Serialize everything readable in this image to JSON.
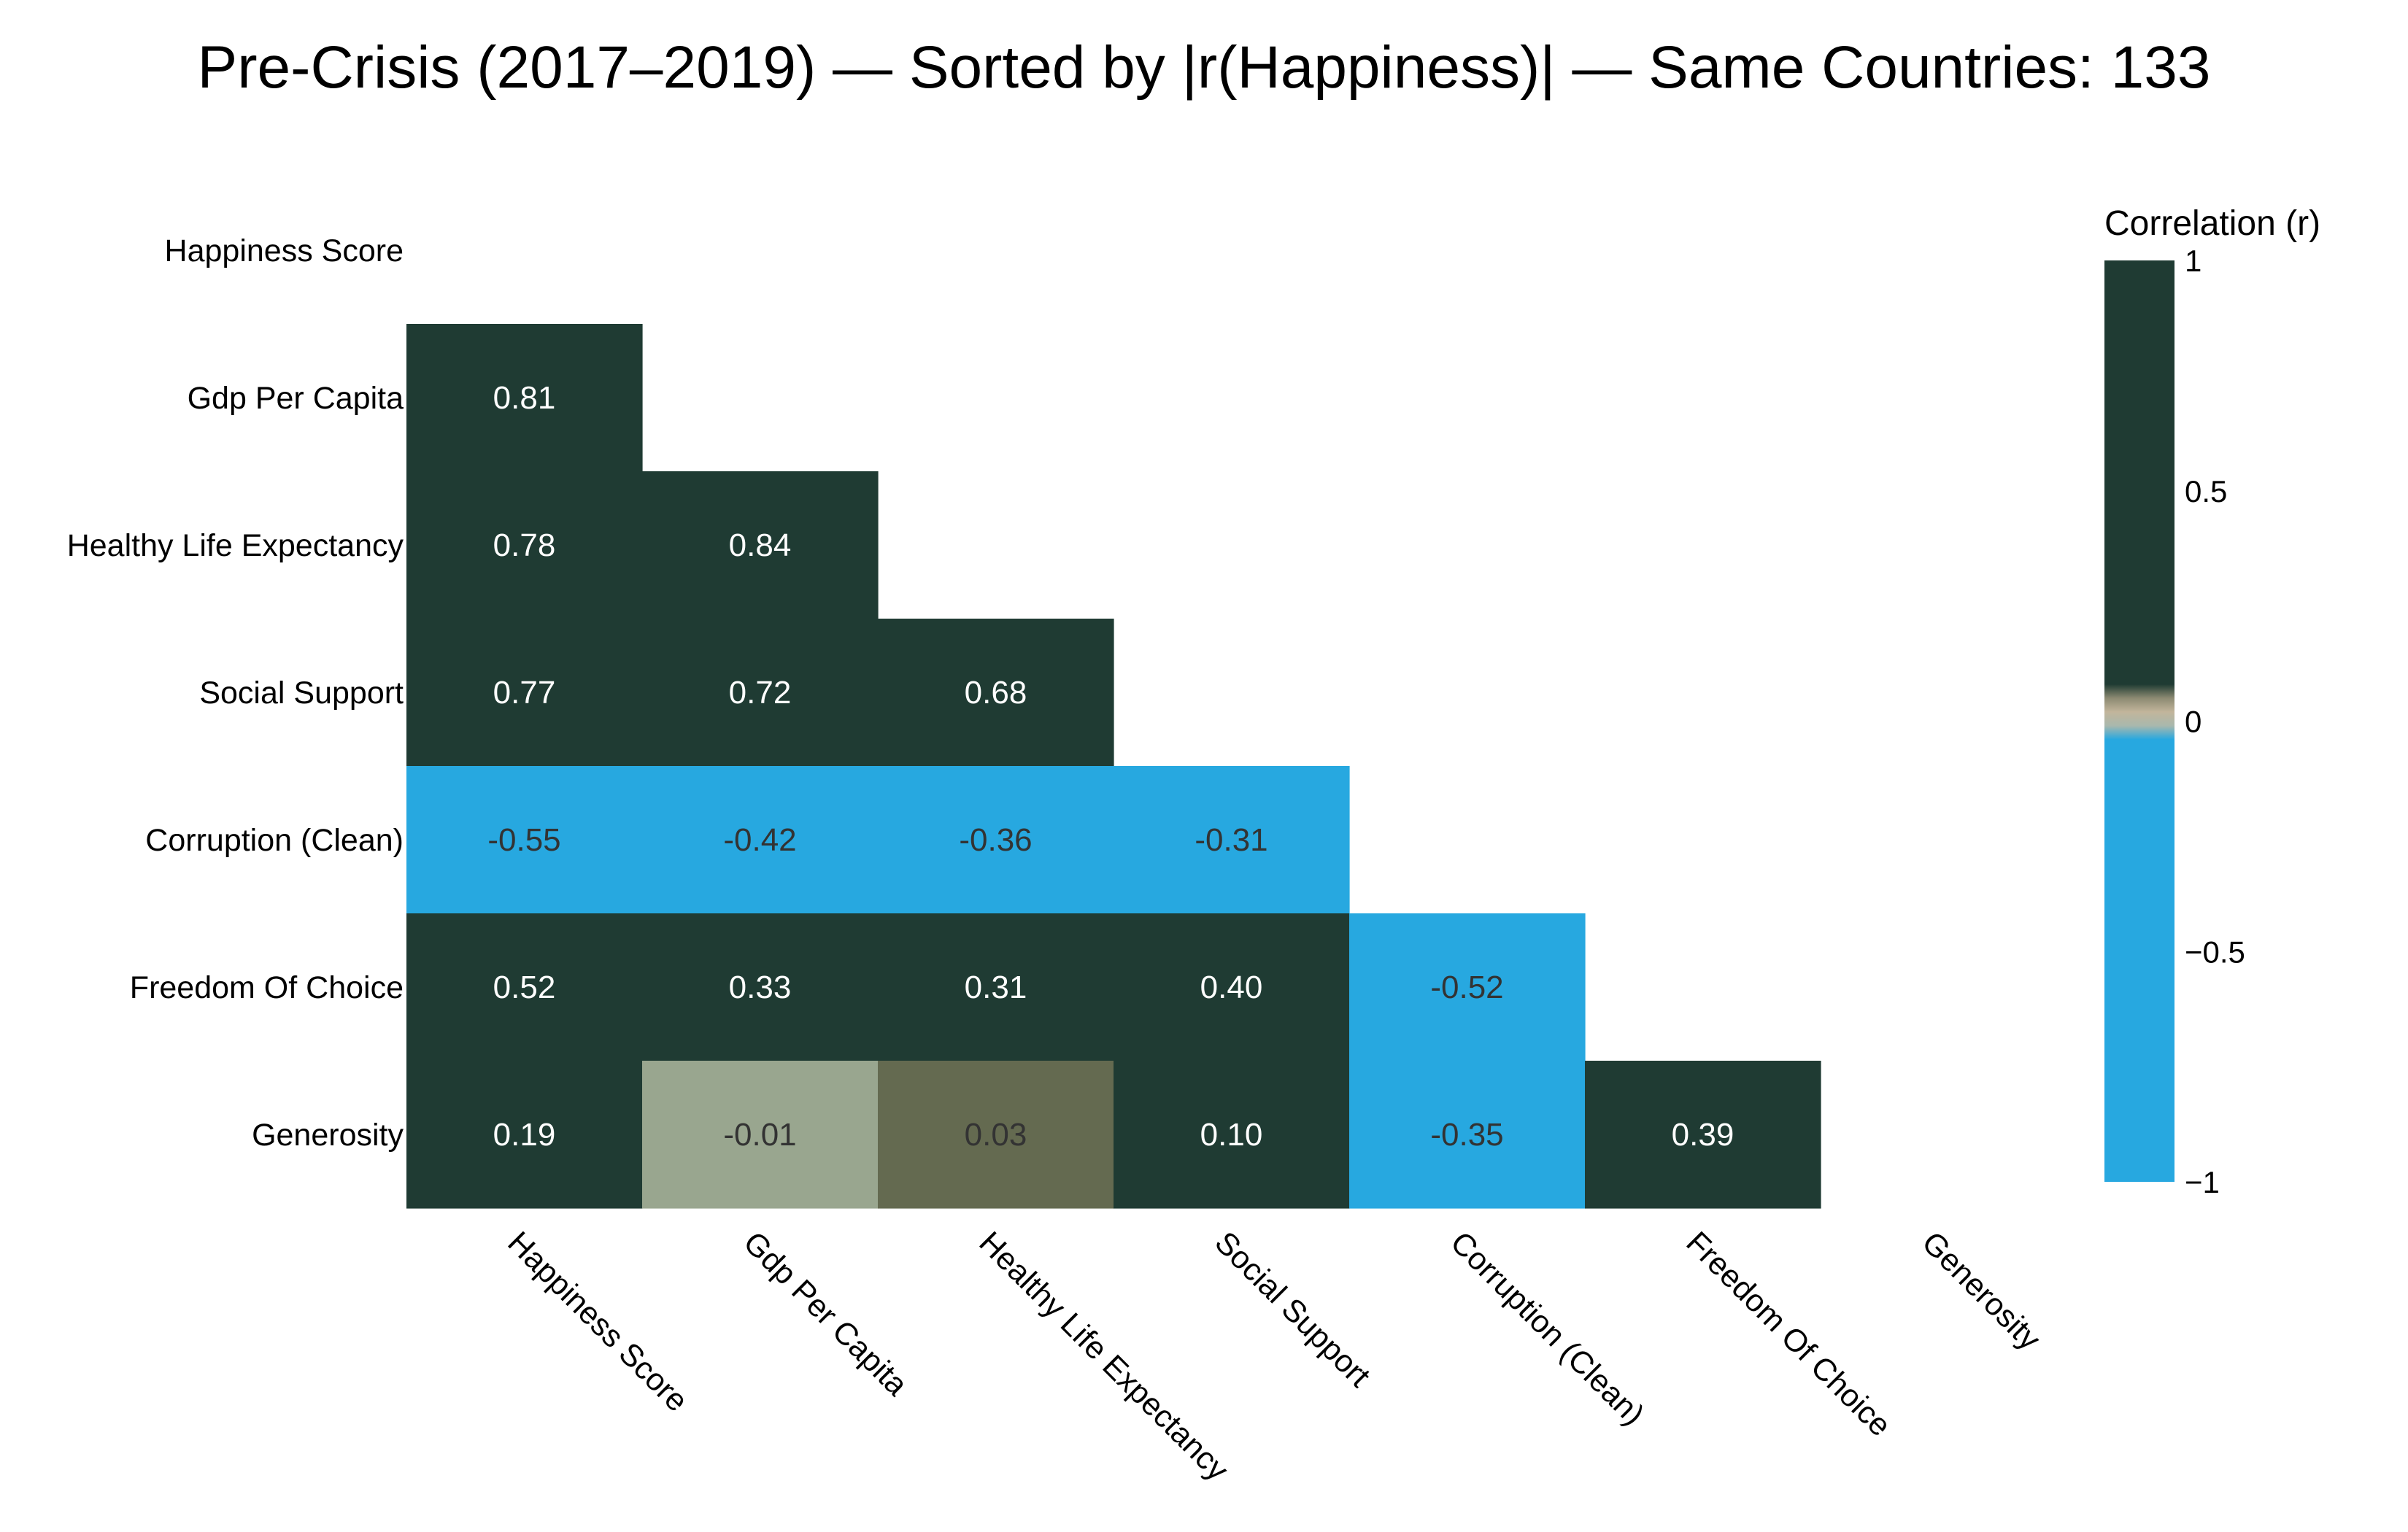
{
  "chart_data": {
    "type": "heatmap",
    "title": "Pre-Crisis (2017–2019) — Sorted by |r(Happiness)| — Same Countries: 133",
    "variables": [
      "Happiness Score",
      "Gdp Per Capita",
      "Healthy Life Expectancy",
      "Social Support",
      "Corruption (Clean)",
      "Freedom Of Choice",
      "Generosity"
    ],
    "mask": "upper-triangle-and-diagonal",
    "matrix": [
      [
        null,
        null,
        null,
        null,
        null,
        null,
        null
      ],
      [
        0.81,
        null,
        null,
        null,
        null,
        null,
        null
      ],
      [
        0.78,
        0.84,
        null,
        null,
        null,
        null,
        null
      ],
      [
        0.77,
        0.72,
        0.68,
        null,
        null,
        null,
        null
      ],
      [
        -0.55,
        -0.42,
        -0.36,
        -0.31,
        null,
        null,
        null
      ],
      [
        0.52,
        0.33,
        0.31,
        0.4,
        -0.52,
        null,
        null
      ],
      [
        0.19,
        -0.01,
        0.03,
        0.1,
        -0.35,
        0.39,
        null
      ]
    ],
    "cell_labels": [
      [
        null,
        null,
        null,
        null,
        null,
        null,
        null
      ],
      [
        "0.81",
        null,
        null,
        null,
        null,
        null,
        null
      ],
      [
        "0.78",
        "0.84",
        null,
        null,
        null,
        null,
        null
      ],
      [
        "0.77",
        "0.72",
        "0.68",
        null,
        null,
        null,
        null
      ],
      [
        "-0.55",
        "-0.42",
        "-0.36",
        "-0.31",
        null,
        null,
        null
      ],
      [
        "0.52",
        "0.33",
        "0.31",
        "0.40",
        "-0.52",
        null,
        null
      ],
      [
        "0.19",
        "-0.01",
        "0.03",
        "0.10",
        "-0.35",
        "0.39",
        null
      ]
    ],
    "colorbar": {
      "title": "Correlation (r)",
      "range": [
        -1,
        1
      ],
      "ticks": [
        1,
        0.5,
        0,
        -0.5,
        -1
      ],
      "tick_labels": [
        "1",
        "0.5",
        "0",
        "−0.5",
        "−1"
      ]
    },
    "colors": {
      "strong_positive": "#1f3b33",
      "strong_negative": "#27a8e0",
      "near_zero_neutral": "#c2b59b",
      "near_zero_neg": "#99a68f",
      "near_zero_pos": "#646a50",
      "label_on_dark": "#ffffff",
      "label_on_light": "#333333"
    },
    "grid": false
  }
}
